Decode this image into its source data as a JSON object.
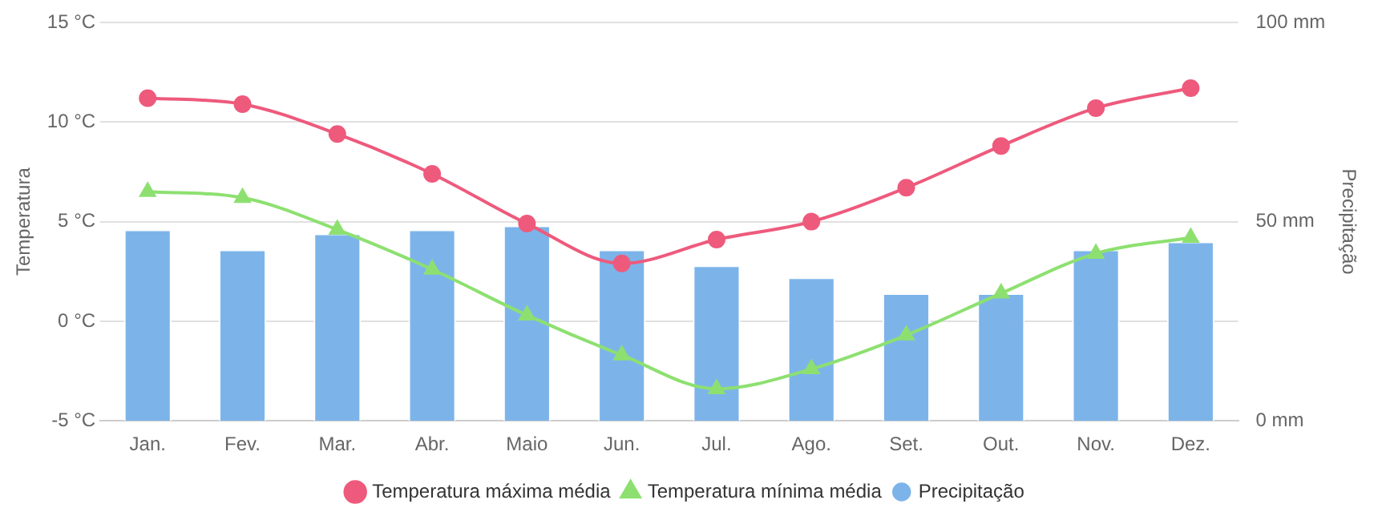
{
  "chart_data": {
    "type": "line",
    "ylabel": "Temperatura",
    "y2label": "Precipitação",
    "categories": [
      "Jan.",
      "Fev.",
      "Mar.",
      "Abr.",
      "Maio",
      "Jun.",
      "Jul.",
      "Ago.",
      "Set.",
      "Out.",
      "Nov.",
      "Dez."
    ],
    "series": [
      {
        "name": "Temperatura máxima média",
        "color": "#ee5a7c",
        "marker": "circle",
        "values": [
          11.2,
          10.9,
          9.4,
          7.4,
          4.9,
          2.9,
          4.1,
          5.0,
          6.7,
          8.8,
          10.7,
          11.7
        ]
      },
      {
        "name": "Temperatura mínima média",
        "color": "#8de070",
        "marker": "triangle",
        "values": [
          6.5,
          6.2,
          4.6,
          2.6,
          0.3,
          -1.7,
          -3.4,
          -2.4,
          -0.7,
          1.4,
          3.4,
          4.2
        ]
      },
      {
        "name": "Precipitação",
        "type": "bar",
        "axis": "y2",
        "color": "#7cb4ea",
        "values": [
          48,
          43,
          47,
          48,
          49,
          43,
          39,
          36,
          32,
          32,
          43,
          45
        ]
      }
    ],
    "ylim": [
      -5,
      15
    ],
    "yticks": [
      {
        "value": -5,
        "label": "-5 °C"
      },
      {
        "value": 0,
        "label": "0 °C"
      },
      {
        "value": 5,
        "label": "5 °C"
      },
      {
        "value": 10,
        "label": "10 °C"
      },
      {
        "value": 15,
        "label": "15 °C"
      }
    ],
    "y2lim": [
      0,
      100
    ],
    "y2ticks": [
      {
        "value": 0,
        "label": "0 mm"
      },
      {
        "value": 50,
        "label": "50 mm"
      },
      {
        "value": 100,
        "label": "100 mm"
      }
    ],
    "grid": "y",
    "legend": "bottom"
  }
}
